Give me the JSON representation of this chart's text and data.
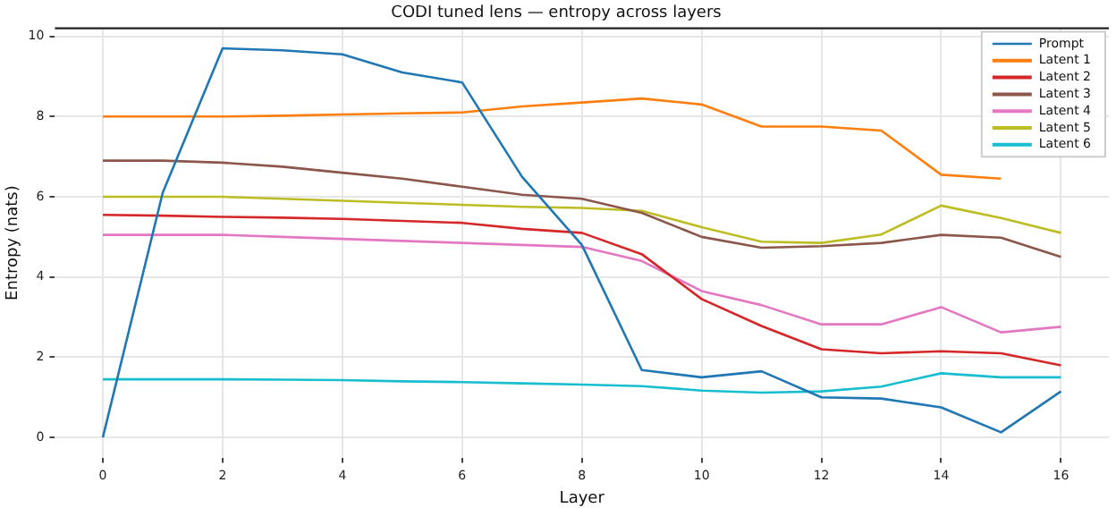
{
  "chart_data": {
    "type": "line",
    "title": "CODI tuned lens — entropy across layers",
    "xlabel": "Layer",
    "ylabel": "Entropy (nats)",
    "x": [
      0,
      1,
      2,
      3,
      4,
      5,
      6,
      7,
      8,
      9,
      10,
      11,
      12,
      13,
      14,
      15,
      16
    ],
    "series": [
      {
        "name": "Prompt",
        "color": "#1f77b4",
        "values": [
          0,
          6.1,
          9.7,
          9.65,
          9.55,
          9.1,
          8.85,
          6.5,
          4.8,
          1.68,
          1.5,
          1.65,
          1.0,
          0.97,
          0.75,
          0.13,
          1.15
        ]
      },
      {
        "name": "Latent 1",
        "color": "#ff7f0e",
        "values": [
          8.0,
          8.0,
          8.0,
          8.02,
          8.05,
          8.08,
          8.1,
          8.25,
          8.35,
          8.45,
          8.3,
          7.75,
          7.75,
          7.65,
          6.55,
          6.45,
          null
        ]
      },
      {
        "name": "Latent 2",
        "color": "#d62728",
        "values": [
          5.55,
          5.53,
          5.5,
          5.48,
          5.45,
          5.4,
          5.35,
          5.2,
          5.1,
          4.57,
          3.45,
          2.78,
          2.2,
          2.1,
          2.15,
          2.1,
          1.8
        ]
      },
      {
        "name": "Latent 3",
        "color": "#8c564b",
        "values": [
          6.9,
          6.9,
          6.85,
          6.75,
          6.6,
          6.45,
          6.25,
          6.05,
          5.95,
          5.6,
          5.0,
          4.73,
          4.77,
          4.85,
          5.05,
          4.98,
          4.5
        ]
      },
      {
        "name": "Latent 4",
        "color": "#e377c2",
        "values": [
          5.05,
          5.05,
          5.05,
          5.0,
          4.95,
          4.9,
          4.85,
          4.8,
          4.75,
          4.4,
          3.65,
          3.3,
          2.82,
          2.82,
          3.25,
          2.62,
          2.76
        ]
      },
      {
        "name": "Latent 5",
        "color": "#bcbd22",
        "values": [
          6.0,
          6.0,
          6.0,
          5.95,
          5.9,
          5.85,
          5.8,
          5.75,
          5.72,
          5.65,
          5.24,
          4.88,
          4.85,
          5.06,
          5.78,
          5.47,
          5.1
        ]
      },
      {
        "name": "Latent 6",
        "color": "#17becf",
        "values": [
          1.45,
          1.45,
          1.45,
          1.44,
          1.43,
          1.4,
          1.38,
          1.35,
          1.32,
          1.28,
          1.17,
          1.12,
          1.15,
          1.27,
          1.6,
          1.5,
          1.5
        ]
      }
    ],
    "xlim": [
      -0.8,
      16.8
    ],
    "xticks": [
      0,
      2,
      4,
      6,
      8,
      10,
      12,
      14,
      16
    ],
    "ylim": [
      -0.5,
      10.2
    ],
    "yticks": [
      0,
      2,
      4,
      6,
      8,
      10
    ],
    "grid": true,
    "legend": "top right",
    "marker": "none",
    "line_style": "solid"
  }
}
